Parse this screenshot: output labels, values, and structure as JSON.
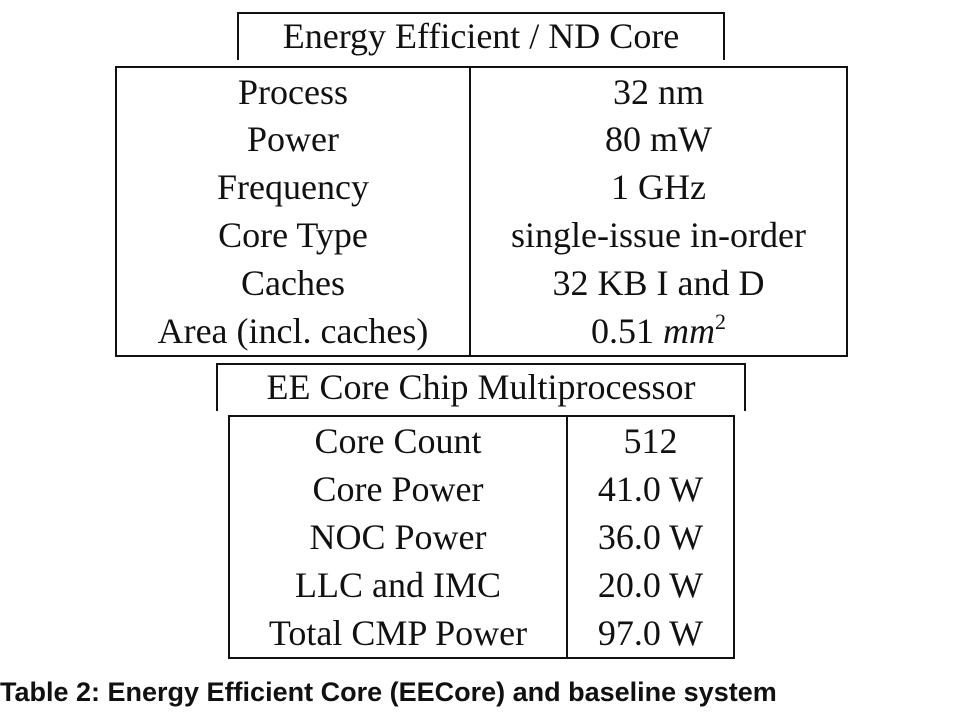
{
  "table1": {
    "title": "Energy Efficient / ND Core",
    "rows": [
      {
        "label": "Process",
        "value": "32 nm"
      },
      {
        "label": "Power",
        "value": "80 mW"
      },
      {
        "label": "Frequency",
        "value": "1 GHz"
      },
      {
        "label": "Core Type",
        "value": "single-issue in-order"
      },
      {
        "label": "Caches",
        "value": "32 KB I and D"
      },
      {
        "label": "Area (incl. caches)",
        "value_number": "0.51",
        "value_unit": "mm",
        "value_exponent": "2"
      }
    ]
  },
  "table2": {
    "title": "EE Core Chip Multiprocessor",
    "rows": [
      {
        "label": "Core Count",
        "value": "512"
      },
      {
        "label": "Core Power",
        "value": "41.0 W"
      },
      {
        "label": "NOC Power",
        "value": "36.0 W"
      },
      {
        "label": "LLC and IMC",
        "value": "20.0 W"
      },
      {
        "label": "Total CMP Power",
        "value": "97.0 W"
      }
    ]
  },
  "caption": "Table 2: Energy Efficient Core (EECore) and baseline system"
}
